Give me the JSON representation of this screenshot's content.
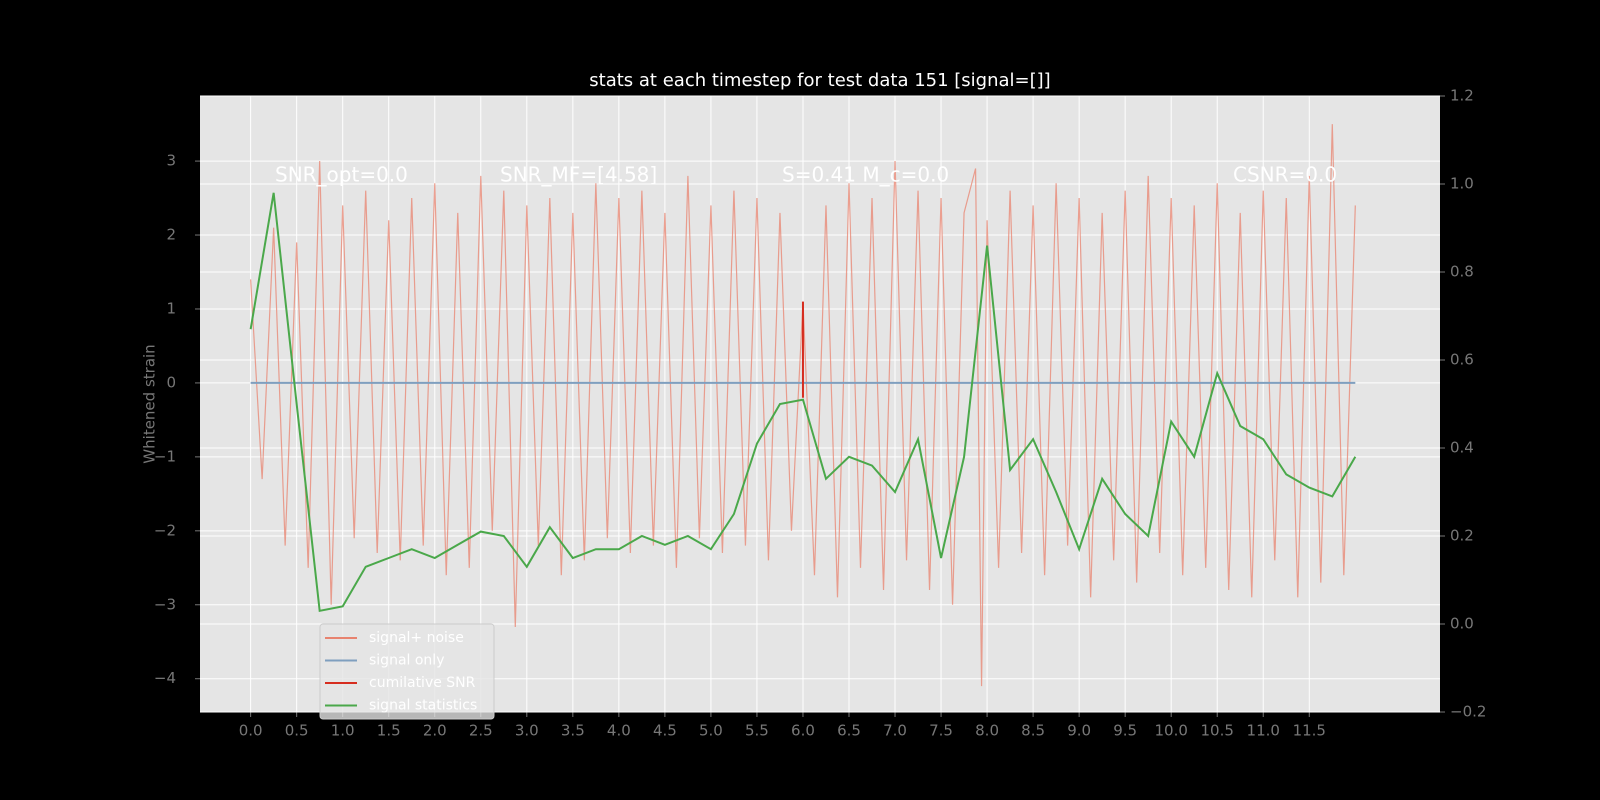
{
  "chart_data": {
    "type": "line",
    "title": "stats at each timestep for test data 151 [signal=[]]",
    "ylabel": "Whitened strain",
    "annotations": [
      "SNR_opt=0.0",
      "SNR_MF=[4.58]",
      "S=0.41  M_c=0.0",
      "CSNR=0.0"
    ],
    "xlim": [
      -0.55,
      12.92
    ],
    "ylim": [
      -4.45,
      3.88
    ],
    "y2lim": [
      -0.2,
      1.2
    ],
    "grid": true,
    "legend": "lower left",
    "xticks": [
      {
        "value": 0,
        "label": "0.0"
      },
      {
        "value": 0.5,
        "label": "0.5"
      },
      {
        "value": 1,
        "label": "1.0"
      },
      {
        "value": 1.5,
        "label": "1.5"
      },
      {
        "value": 2,
        "label": "2.0"
      },
      {
        "value": 2.5,
        "label": "2.5"
      },
      {
        "value": 3,
        "label": "3.0"
      },
      {
        "value": 3.5,
        "label": "3.5"
      },
      {
        "value": 4,
        "label": "4.0"
      },
      {
        "value": 4.5,
        "label": "4.5"
      },
      {
        "value": 5,
        "label": "5.0"
      },
      {
        "value": 5.5,
        "label": "5.5"
      },
      {
        "value": 6,
        "label": "6.0"
      },
      {
        "value": 6.5,
        "label": "6.5"
      },
      {
        "value": 7,
        "label": "7.0"
      },
      {
        "value": 7.5,
        "label": "7.5"
      },
      {
        "value": 8,
        "label": "8.0"
      },
      {
        "value": 8.5,
        "label": "8.5"
      },
      {
        "value": 9,
        "label": "9.0"
      },
      {
        "value": 9.5,
        "label": "9.5"
      },
      {
        "value": 10,
        "label": "10.0"
      },
      {
        "value": 10.5,
        "label": "10.5"
      },
      {
        "value": 11,
        "label": "11.0"
      },
      {
        "value": 11.5,
        "label": "11.5"
      }
    ],
    "yticks": [
      {
        "value": -4,
        "label": "−4"
      },
      {
        "value": -3,
        "label": "−3"
      },
      {
        "value": -2,
        "label": "−2"
      },
      {
        "value": -1,
        "label": "−1"
      },
      0,
      1,
      2,
      3
    ],
    "y2ticks": [
      {
        "value": -0.2,
        "label": "−0.2"
      },
      {
        "value": 0,
        "label": "0.0"
      },
      {
        "value": 0.2,
        "label": "0.2"
      },
      {
        "value": 0.4,
        "label": "0.4"
      },
      {
        "value": 0.6,
        "label": "0.6"
      },
      {
        "value": 0.8,
        "label": "0.8"
      },
      {
        "value": 1.0,
        "label": "1.0"
      },
      {
        "value": 1.2,
        "label": "1.2"
      }
    ],
    "series": [
      {
        "name": "signal+ noise",
        "color": "#e8836f",
        "x": [
          0,
          0.125,
          0.25,
          0.375,
          0.5,
          0.625,
          0.75,
          0.875,
          1,
          1.125,
          1.25,
          1.375,
          1.5,
          1.625,
          1.75,
          1.875,
          2,
          2.125,
          2.25,
          2.375,
          2.5,
          2.625,
          2.75,
          2.875,
          3,
          3.125,
          3.25,
          3.375,
          3.5,
          3.625,
          3.75,
          3.875,
          4,
          4.125,
          4.25,
          4.375,
          4.5,
          4.625,
          4.75,
          4.875,
          5,
          5.125,
          5.25,
          5.375,
          5.5,
          5.625,
          5.75,
          5.875,
          6,
          6.125,
          6.25,
          6.375,
          6.5,
          6.625,
          6.75,
          6.875,
          7,
          7.125,
          7.25,
          7.375,
          7.5,
          7.625,
          7.75,
          7.875,
          7.94,
          8.0,
          8.125,
          8.25,
          8.375,
          8.5,
          8.625,
          8.75,
          8.875,
          9,
          9.125,
          9.25,
          9.375,
          9.5,
          9.625,
          9.75,
          9.875,
          10,
          10.125,
          10.25,
          10.375,
          10.5,
          10.625,
          10.75,
          10.875,
          11,
          11.125,
          11.25,
          11.375,
          11.5,
          11.625,
          11.75,
          11.875,
          12
        ],
        "values": [
          1.4,
          -1.3,
          2.1,
          -2.2,
          1.9,
          -2.5,
          3.0,
          -3.0,
          2.4,
          -2.1,
          2.6,
          -2.3,
          2.2,
          -2.4,
          2.5,
          -2.2,
          2.7,
          -2.6,
          2.3,
          -2.5,
          2.8,
          -2.0,
          2.6,
          -3.3,
          2.4,
          -2.2,
          2.5,
          -2.6,
          2.3,
          -2.4,
          2.7,
          -2.1,
          2.5,
          -2.3,
          2.6,
          -2.2,
          2.3,
          -2.5,
          2.8,
          -2.1,
          2.4,
          -2.3,
          2.6,
          -2.2,
          2.5,
          -2.4,
          2.3,
          -2.0,
          1.1,
          -2.6,
          2.4,
          -2.9,
          2.7,
          -2.5,
          2.5,
          -2.8,
          3.0,
          -2.4,
          2.6,
          -2.8,
          2.5,
          -3.0,
          2.3,
          2.9,
          -4.1,
          2.2,
          -2.5,
          2.6,
          -2.3,
          2.4,
          -2.6,
          2.7,
          -2.2,
          2.5,
          -2.9,
          2.3,
          -2.4,
          2.6,
          -2.7,
          2.8,
          -2.3,
          2.5,
          -2.6,
          2.4,
          -2.5,
          2.7,
          -2.8,
          2.3,
          -2.9,
          2.6,
          -2.4,
          2.5,
          -2.9,
          2.8,
          -2.7,
          3.5,
          -2.6,
          2.4
        ]
      },
      {
        "name": "signal only",
        "color": "#7f9fbf",
        "x": [
          0,
          12
        ],
        "values": [
          0,
          0
        ]
      },
      {
        "name": "cumilative SNR",
        "color": "#d62d1f",
        "x": [
          6,
          6
        ],
        "values": [
          -0.2,
          1.1
        ]
      },
      {
        "name": "signal statistics",
        "color": "#4aa84a",
        "axis": "y2",
        "x": [
          0,
          0.25,
          0.5,
          0.75,
          1,
          1.25,
          1.5,
          1.75,
          2,
          2.25,
          2.5,
          2.75,
          3,
          3.25,
          3.5,
          3.75,
          4,
          4.25,
          4.5,
          4.75,
          5,
          5.25,
          5.5,
          5.75,
          6,
          6.25,
          6.5,
          6.75,
          7,
          7.25,
          7.5,
          7.75,
          8,
          8.25,
          8.5,
          8.75,
          9,
          9.25,
          9.5,
          9.75,
          10,
          10.25,
          10.5,
          10.75,
          11,
          11.25,
          11.5,
          11.75,
          12
        ],
        "values": [
          0.67,
          0.98,
          0.5,
          0.03,
          0.04,
          0.13,
          0.15,
          0.17,
          0.15,
          0.18,
          0.21,
          0.2,
          0.13,
          0.22,
          0.15,
          0.17,
          0.17,
          0.2,
          0.18,
          0.2,
          0.17,
          0.25,
          0.41,
          0.5,
          0.51,
          0.33,
          0.38,
          0.36,
          0.3,
          0.42,
          0.15,
          0.38,
          0.86,
          0.35,
          0.42,
          0.3,
          0.17,
          0.33,
          0.25,
          0.2,
          0.46,
          0.38,
          0.57,
          0.45,
          0.42,
          0.34,
          0.31,
          0.29,
          0.38
        ]
      }
    ]
  }
}
